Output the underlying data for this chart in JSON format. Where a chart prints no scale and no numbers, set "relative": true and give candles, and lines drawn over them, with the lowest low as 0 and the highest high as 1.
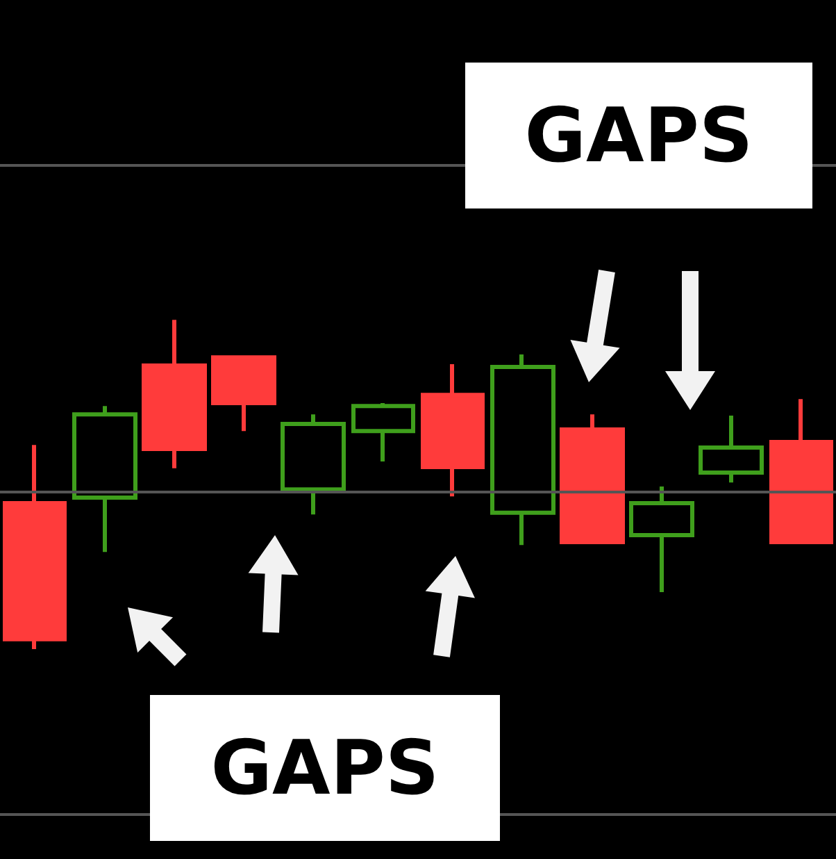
{
  "chart_data": {
    "type": "candlestick",
    "relative": true,
    "ref_lines": [
      {
        "axis": "y",
        "value": 1.473,
        "color": "#555555"
      },
      {
        "axis": "y",
        "value": 0.477,
        "color": "#555555"
      },
      {
        "axis": "y",
        "value": -0.498,
        "color": "#555555"
      }
    ],
    "categories": [
      null,
      null,
      null,
      null,
      null,
      null,
      null,
      null,
      null,
      null,
      null,
      null
    ],
    "ohlc": [
      [
        0.443,
        0.62,
        0,
        0.03
      ],
      [
        0.46,
        0.738,
        0.295,
        0.713
      ],
      [
        0.861,
        1,
        0.549,
        0.608
      ],
      [
        0.886,
        0.886,
        0.662,
        0.747
      ],
      [
        0.485,
        0.713,
        0.409,
        0.684
      ],
      [
        0.662,
        0.747,
        0.57,
        0.738
      ],
      [
        0.772,
        0.865,
        0.464,
        0.553
      ],
      [
        0.414,
        0.895,
        0.316,
        0.857
      ],
      [
        0.667,
        0.713,
        0.325,
        0.325
      ],
      [
        0.346,
        0.494,
        0.173,
        0.443
      ],
      [
        0.536,
        0.709,
        0.506,
        0.612
      ],
      [
        0.629,
        0.759,
        0.325,
        0.325
      ]
    ],
    "colors": [
      "#ff3b3b",
      "#3f9f1c",
      "#ff3b3b",
      "#ff3b3b",
      "#3f9f1c",
      "#3f9f1c",
      "#ff3b3b",
      "#3f9f1c",
      "#ff3b3b",
      "#3f9f1c",
      "#3f9f1c",
      "#ff3b3b"
    ],
    "annotations": [
      "GAPS",
      "GAPS"
    ]
  }
}
